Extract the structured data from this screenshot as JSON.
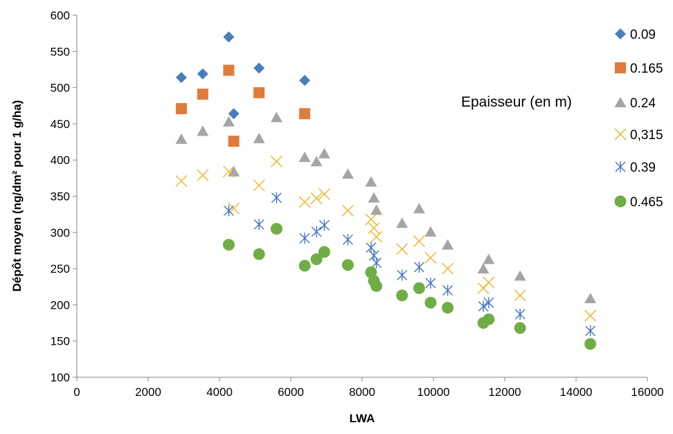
{
  "chart_data": {
    "type": "scatter",
    "title": "",
    "xlabel": "LWA",
    "ylabel": "Dépôt moyen (ng/dm² pour 1 g/ha)",
    "xlim": [
      0,
      16000
    ],
    "ylim": [
      100,
      600
    ],
    "x_ticks": [
      "0",
      "2000",
      "4000",
      "6000",
      "8000",
      "10000",
      "12000",
      "14000",
      "16000"
    ],
    "y_ticks": [
      "100",
      "150",
      "200",
      "250",
      "300",
      "350",
      "400",
      "450",
      "500",
      "550",
      "600"
    ],
    "grid": false,
    "legend_position": "right",
    "annotation": "Epaisseur (en m)",
    "series": [
      {
        "name": "0.09",
        "marker": "diamond",
        "color": "#4A7EBB",
        "points": [
          [
            2930,
            514
          ],
          [
            3530,
            519
          ],
          [
            4260,
            570
          ],
          [
            4400,
            464
          ],
          [
            5110,
            527
          ],
          [
            6390,
            510
          ]
        ]
      },
      {
        "name": "0.165",
        "marker": "square",
        "color": "#E07B39",
        "points": [
          [
            2930,
            471
          ],
          [
            3530,
            491
          ],
          [
            4260,
            524
          ],
          [
            4400,
            426
          ],
          [
            5110,
            493
          ],
          [
            6390,
            464
          ]
        ]
      },
      {
        "name": "0.24",
        "marker": "triangle",
        "color": "#A5A5A5",
        "points": [
          [
            2930,
            429
          ],
          [
            3530,
            440
          ],
          [
            4260,
            453
          ],
          [
            4400,
            384
          ],
          [
            5110,
            430
          ],
          [
            5600,
            459
          ],
          [
            6390,
            404
          ],
          [
            6720,
            398
          ],
          [
            6940,
            409
          ],
          [
            7600,
            381
          ],
          [
            8250,
            370
          ],
          [
            8330,
            348
          ],
          [
            8400,
            331
          ],
          [
            9120,
            313
          ],
          [
            9600,
            333
          ],
          [
            9920,
            301
          ],
          [
            10400,
            283
          ],
          [
            11400,
            250
          ],
          [
            11550,
            263
          ],
          [
            12430,
            240
          ],
          [
            14400,
            209
          ]
        ]
      },
      {
        "name": "0,315",
        "marker": "x",
        "color": "#F0B323",
        "points": [
          [
            2930,
            371
          ],
          [
            3530,
            379
          ],
          [
            4260,
            384
          ],
          [
            4400,
            333
          ],
          [
            5110,
            365
          ],
          [
            5600,
            398
          ],
          [
            6390,
            342
          ],
          [
            6720,
            347
          ],
          [
            6940,
            353
          ],
          [
            7600,
            330
          ],
          [
            8250,
            318
          ],
          [
            8330,
            306
          ],
          [
            8400,
            294
          ],
          [
            9120,
            277
          ],
          [
            9600,
            288
          ],
          [
            9920,
            265
          ],
          [
            10400,
            250
          ],
          [
            11400,
            223
          ],
          [
            11550,
            231
          ],
          [
            12430,
            213
          ],
          [
            14400,
            185
          ]
        ]
      },
      {
        "name": "0.39",
        "marker": "star",
        "color": "#4472C4",
        "points": [
          [
            4260,
            330
          ],
          [
            5110,
            311
          ],
          [
            5600,
            348
          ],
          [
            6390,
            292
          ],
          [
            6720,
            301
          ],
          [
            6940,
            310
          ],
          [
            7600,
            290
          ],
          [
            8250,
            279
          ],
          [
            8330,
            268
          ],
          [
            8400,
            258
          ],
          [
            9120,
            241
          ],
          [
            9600,
            252
          ],
          [
            9920,
            230
          ],
          [
            10400,
            220
          ],
          [
            11400,
            198
          ],
          [
            11550,
            203
          ],
          [
            12430,
            187
          ],
          [
            14400,
            164
          ]
        ]
      },
      {
        "name": "0.465",
        "marker": "circle",
        "color": "#70AD47",
        "points": [
          [
            4260,
            283
          ],
          [
            5110,
            270
          ],
          [
            5600,
            305
          ],
          [
            6390,
            254
          ],
          [
            6720,
            263
          ],
          [
            6940,
            273
          ],
          [
            7600,
            255
          ],
          [
            8250,
            245
          ],
          [
            8330,
            233
          ],
          [
            8400,
            226
          ],
          [
            9120,
            213
          ],
          [
            9600,
            223
          ],
          [
            9920,
            203
          ],
          [
            10400,
            196
          ],
          [
            11400,
            175
          ],
          [
            11550,
            180
          ],
          [
            12430,
            168
          ],
          [
            14400,
            146
          ]
        ]
      }
    ]
  }
}
